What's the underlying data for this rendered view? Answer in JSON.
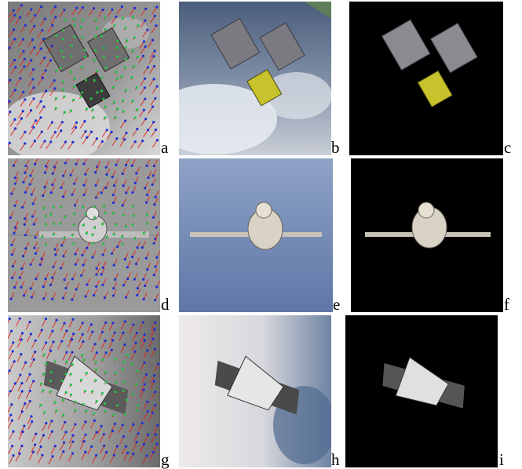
{
  "figure": {
    "panels": [
      {
        "id": "a",
        "label": "a",
        "kind": "flow-field",
        "subject": "satellite"
      },
      {
        "id": "b",
        "label": "b",
        "kind": "original-frame",
        "subject": "satellite"
      },
      {
        "id": "c",
        "label": "c",
        "kind": "segmented",
        "subject": "satellite"
      },
      {
        "id": "d",
        "label": "d",
        "kind": "flow-field",
        "subject": "capsule"
      },
      {
        "id": "e",
        "label": "e",
        "kind": "original-frame",
        "subject": "capsule"
      },
      {
        "id": "f",
        "label": "f",
        "kind": "segmented",
        "subject": "capsule"
      },
      {
        "id": "g",
        "label": "g",
        "kind": "flow-field",
        "subject": "shuttle"
      },
      {
        "id": "h",
        "label": "h",
        "kind": "original-frame",
        "subject": "shuttle"
      },
      {
        "id": "i",
        "label": "i",
        "kind": "segmented",
        "subject": "shuttle"
      }
    ],
    "colors": {
      "flow_vector": "#e0201c",
      "background_point": "#1f2fd6",
      "object_point": "#22c24a",
      "mask_background": "#000000"
    }
  }
}
